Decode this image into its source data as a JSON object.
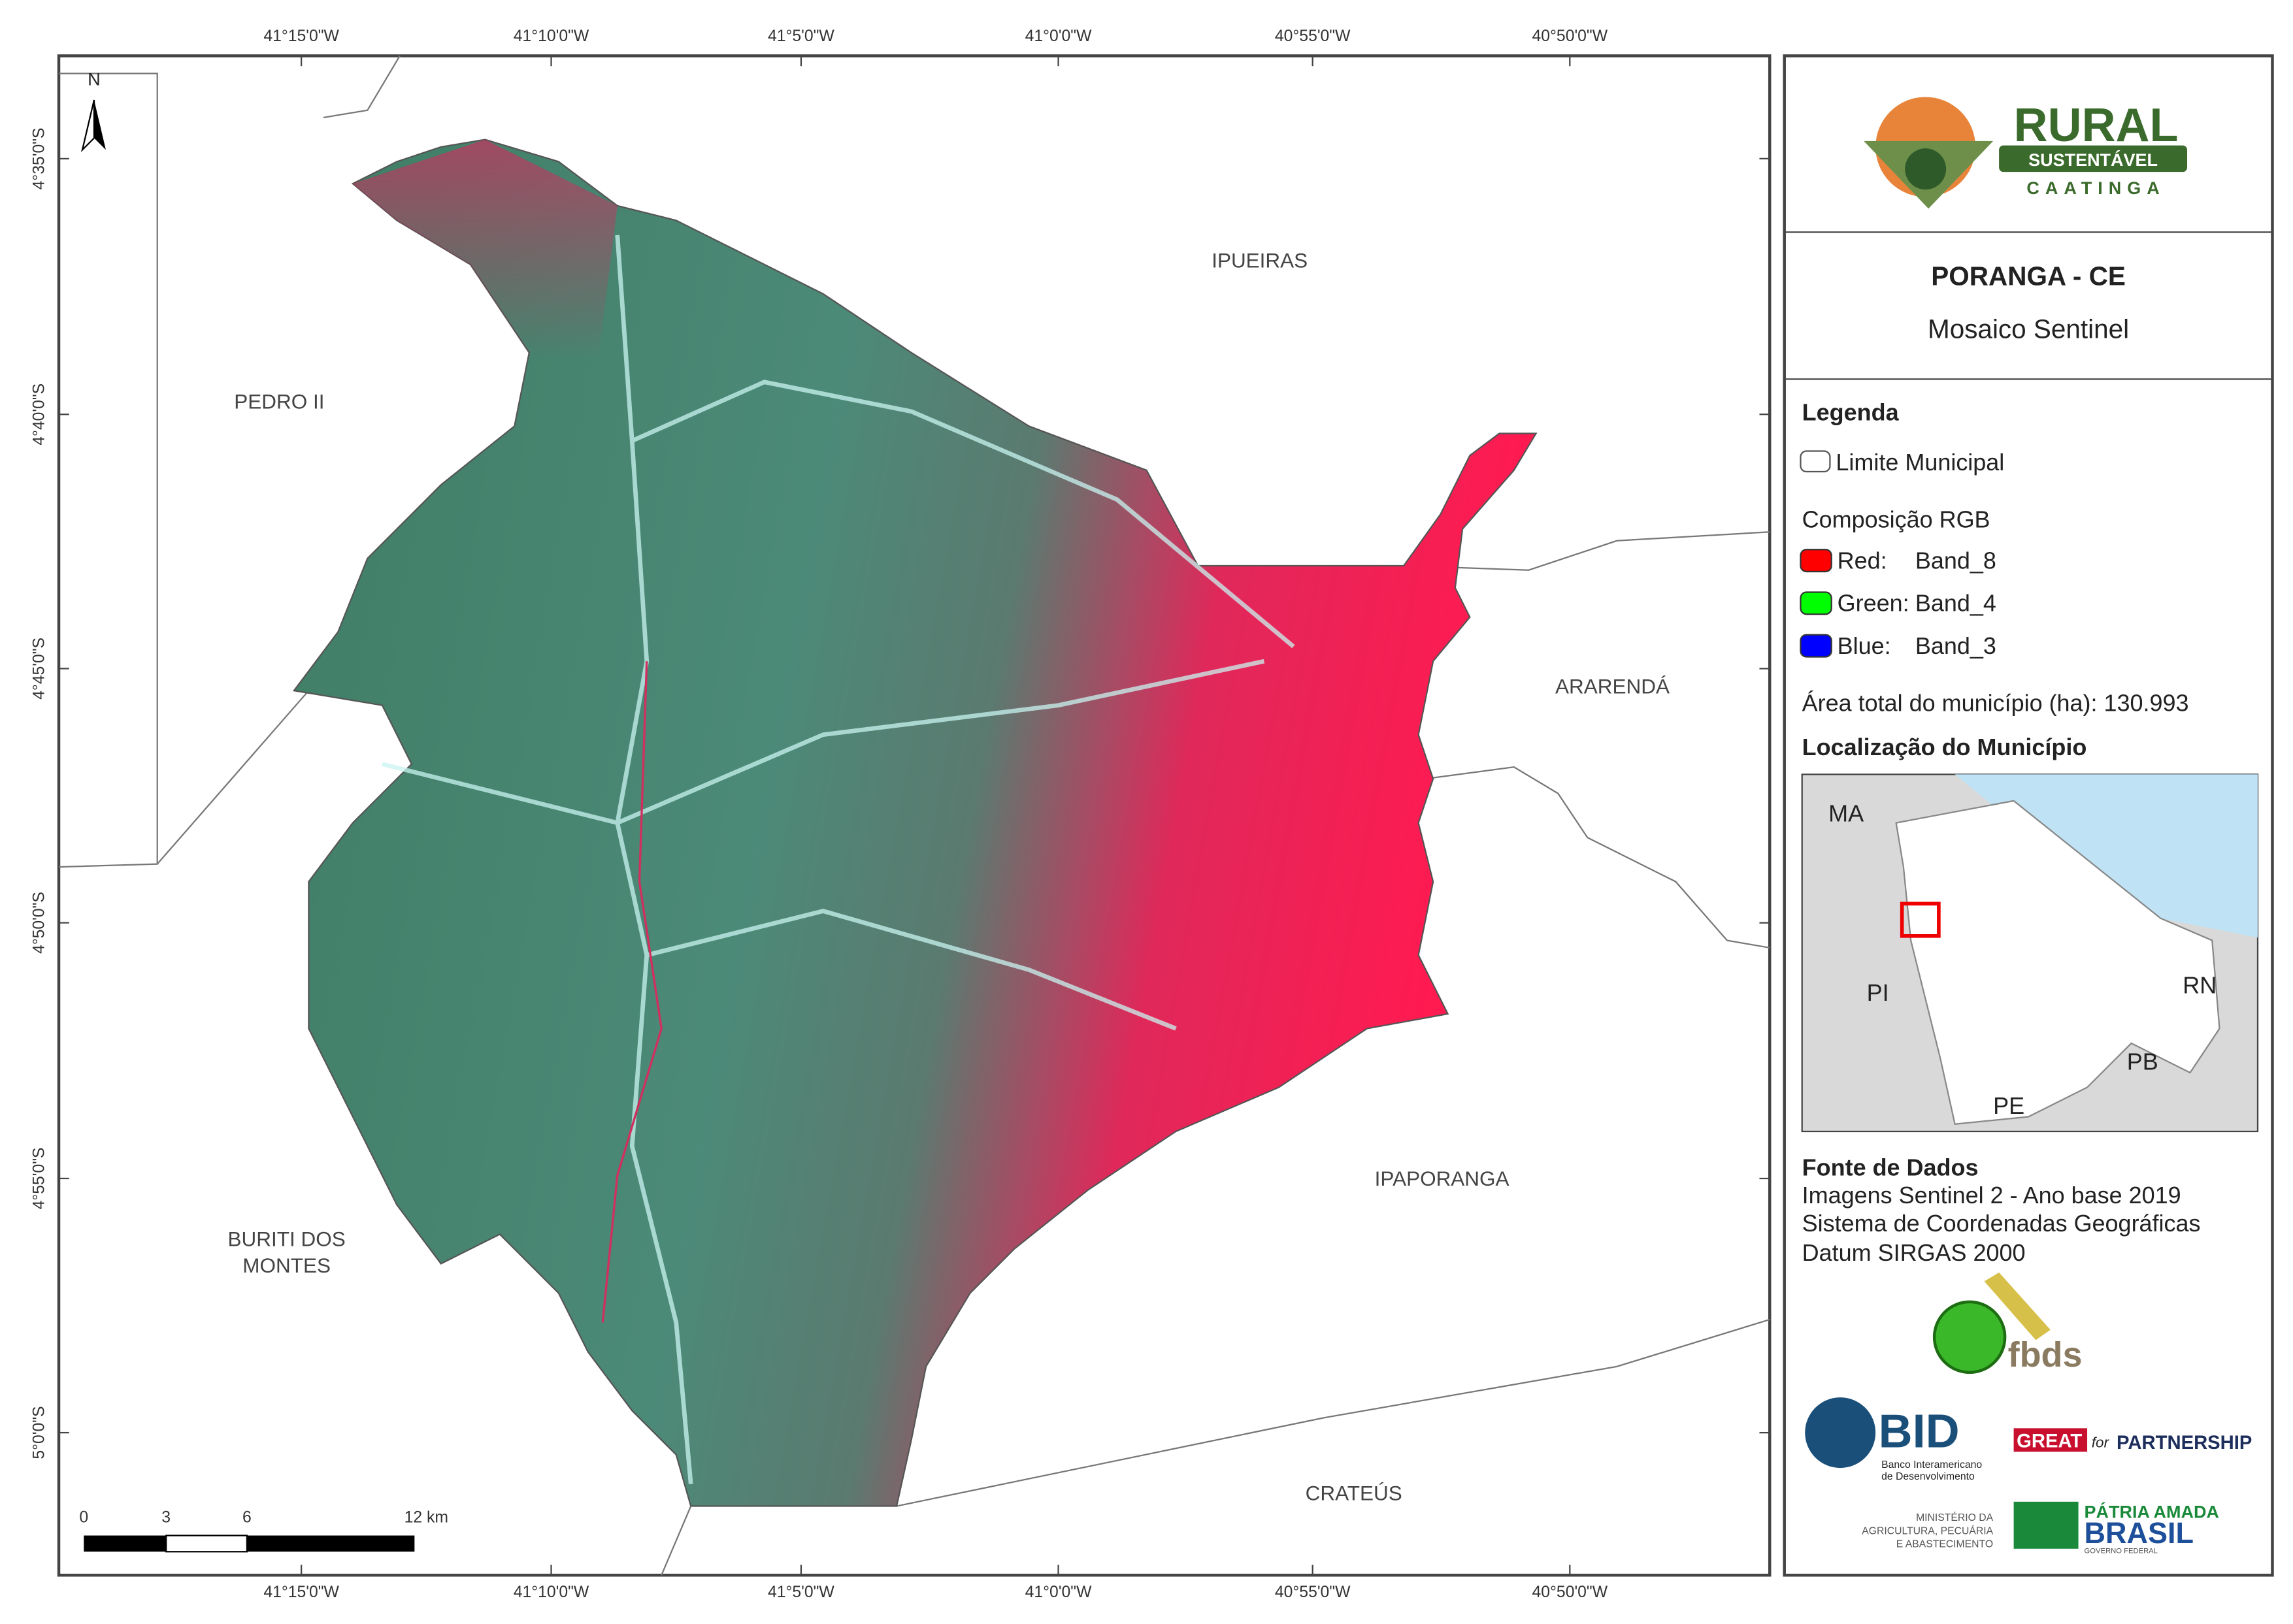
{
  "map": {
    "north": "N",
    "lon_labels": [
      "41°15'0\"W",
      "41°10'0\"W",
      "41°5'0\"W",
      "41°0'0\"W",
      "40°55'0\"W",
      "40°50'0\"W"
    ],
    "lat_labels": [
      "4°35'0\"S",
      "4°40'0\"S",
      "4°45'0\"S",
      "4°50'0\"S",
      "4°55'0\"S",
      "5°0'0\"S"
    ],
    "neighbors": [
      "IPUEIRAS",
      "PEDRO II",
      "ARARENDÁ",
      "IPAPORANGA",
      "CRATEÚS"
    ],
    "neighbor_buriti": [
      "BURITI DOS",
      "MONTES"
    ],
    "scale_labels": [
      "0",
      "3",
      "6",
      "12 km"
    ]
  },
  "panel": {
    "logo": {
      "title": "RURAL",
      "sub": "SUSTENTÁVEL",
      "sub2": "CAATINGA"
    },
    "title": "PORANGA - CE",
    "subtitle": "Mosaico Sentinel",
    "legend": {
      "title": "Legenda",
      "limit": "Limite Municipal",
      "rgb": "Composição RGB",
      "bands": [
        {
          "name": "Red:",
          "band": "Band_8",
          "color": "#ff0000"
        },
        {
          "name": "Green:",
          "band": "Band_4",
          "color": "#00ff00"
        },
        {
          "name": "Blue:",
          "band": "Band_3",
          "color": "#0000ff"
        }
      ],
      "area": "Área total do município (ha): 130.993"
    },
    "location": {
      "title": "Localização do Município",
      "states": [
        "MA",
        "PI",
        "RN",
        "PB",
        "PE"
      ]
    },
    "sources": {
      "title": "Fonte de Dados",
      "lines": [
        "Imagens Sentinel 2 - Ano base 2019",
        "Sistema de Coordenadas Geográficas",
        "Datum SIRGAS 2000"
      ]
    },
    "fbds": "fbds",
    "bid": "BID",
    "bid_name": [
      "Banco Interamericano",
      "de Desenvolvimento"
    ],
    "great": "GREAT",
    "great_for": "for",
    "great_partner": "PARTNERSHIP",
    "ministry": [
      "MINISTÉRIO DA",
      "AGRICULTURA, PECUÁRIA",
      "E ABASTECIMENTO"
    ],
    "patria": "PÁTRIA AMADA",
    "brasil": "BRASIL",
    "gov": "GOVERNO FEDERAL"
  }
}
